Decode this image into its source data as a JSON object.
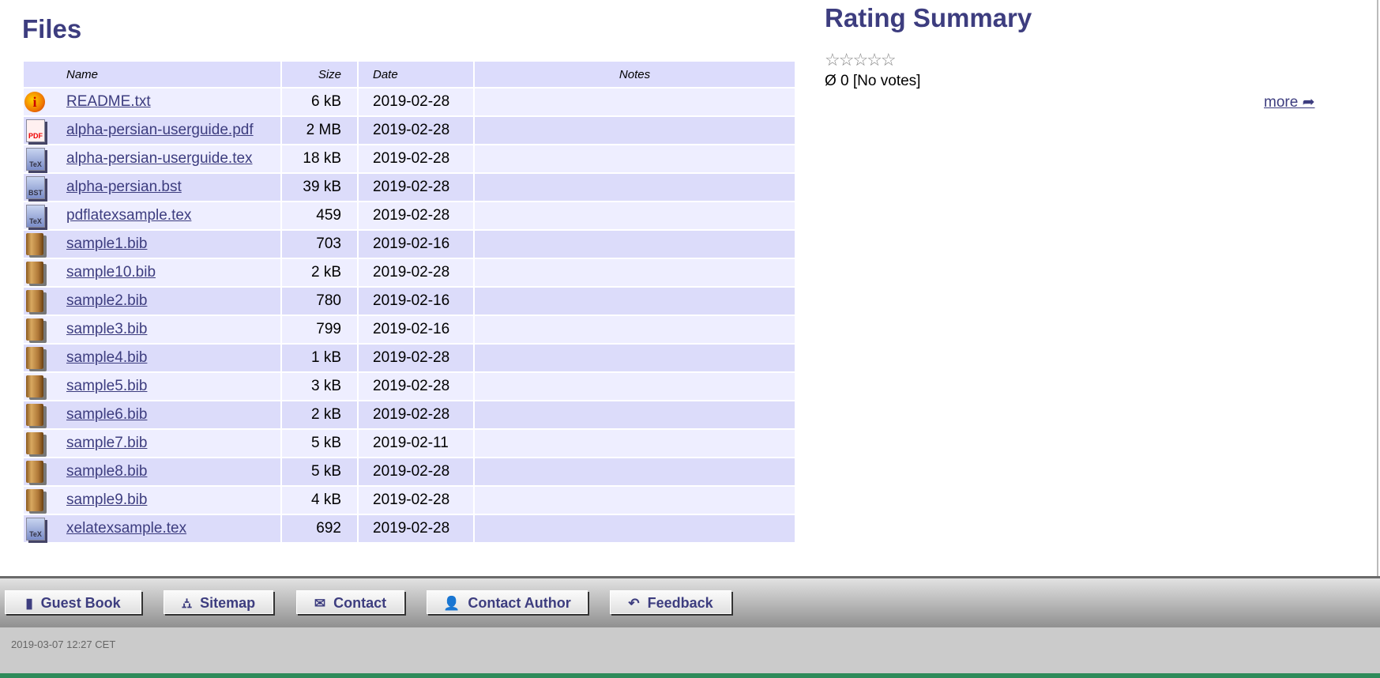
{
  "files": {
    "title": "Files",
    "columns": {
      "name": "Name",
      "size": "Size",
      "date": "Date",
      "notes": "Notes"
    },
    "rows": [
      {
        "icon": "info-icon",
        "name": "README.txt",
        "size": "6 kB",
        "date": "2019-02-28",
        "notes": ""
      },
      {
        "icon": "pdf-icon",
        "name": "alpha-persian-userguide.pdf",
        "size": "2 MB",
        "date": "2019-02-28",
        "notes": ""
      },
      {
        "icon": "tex-icon",
        "name": "alpha-persian-userguide.tex",
        "size": "18 kB",
        "date": "2019-02-28",
        "notes": ""
      },
      {
        "icon": "bst-icon",
        "name": "alpha-persian.bst",
        "size": "39 kB",
        "date": "2019-02-28",
        "notes": ""
      },
      {
        "icon": "tex-icon",
        "name": "pdflatexsample.tex",
        "size": "459",
        "date": "2019-02-28",
        "notes": ""
      },
      {
        "icon": "book-icon",
        "name": "sample1.bib",
        "size": "703",
        "date": "2019-02-16",
        "notes": ""
      },
      {
        "icon": "book-icon",
        "name": "sample10.bib",
        "size": "2 kB",
        "date": "2019-02-28",
        "notes": ""
      },
      {
        "icon": "book-icon",
        "name": "sample2.bib",
        "size": "780",
        "date": "2019-02-16",
        "notes": ""
      },
      {
        "icon": "book-icon",
        "name": "sample3.bib",
        "size": "799",
        "date": "2019-02-16",
        "notes": ""
      },
      {
        "icon": "book-icon",
        "name": "sample4.bib",
        "size": "1 kB",
        "date": "2019-02-28",
        "notes": ""
      },
      {
        "icon": "book-icon",
        "name": "sample5.bib",
        "size": "3 kB",
        "date": "2019-02-28",
        "notes": ""
      },
      {
        "icon": "book-icon",
        "name": "sample6.bib",
        "size": "2 kB",
        "date": "2019-02-28",
        "notes": ""
      },
      {
        "icon": "book-icon",
        "name": "sample7.bib",
        "size": "5 kB",
        "date": "2019-02-11",
        "notes": ""
      },
      {
        "icon": "book-icon",
        "name": "sample8.bib",
        "size": "5 kB",
        "date": "2019-02-28",
        "notes": ""
      },
      {
        "icon": "book-icon",
        "name": "sample9.bib",
        "size": "4 kB",
        "date": "2019-02-28",
        "notes": ""
      },
      {
        "icon": "tex-icon",
        "name": "xelatexsample.tex",
        "size": "692",
        "date": "2019-02-28",
        "notes": ""
      }
    ]
  },
  "rating": {
    "title": "Rating Summary",
    "stars": "☆☆☆☆☆",
    "rating_value": 0,
    "votes_text": "Ø 0 [No votes]",
    "more_label": "more ➦"
  },
  "footer": {
    "buttons": [
      {
        "label": "Guest Book",
        "icon": "book-icon",
        "glyph": "▮"
      },
      {
        "label": "Sitemap",
        "icon": "sitemap-icon",
        "glyph": "⛼"
      },
      {
        "label": "Contact",
        "icon": "envelope-icon",
        "glyph": "✉"
      },
      {
        "label": "Contact Author",
        "icon": "user-icon",
        "glyph": "👤"
      },
      {
        "label": "Feedback",
        "icon": "reply-icon",
        "glyph": "↶"
      }
    ],
    "timestamp": "2019-03-07 12:27 CET"
  },
  "colors": {
    "accent": "#3d3d7f",
    "row_light": "#eeeeff",
    "row_dark": "#dcdcfa"
  }
}
